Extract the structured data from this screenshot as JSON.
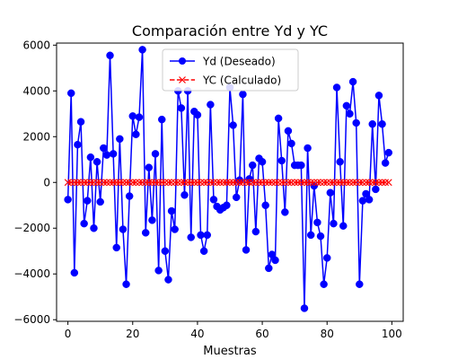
{
  "chart_data": {
    "type": "line",
    "title": "Comparación entre Yd y YC",
    "xlabel": "Muestras",
    "ylabel": "",
    "xlim": [
      -3.5,
      103.5
    ],
    "ylim": [
      -6070,
      6090
    ],
    "xticks": [
      0,
      20,
      40,
      60,
      80,
      100
    ],
    "yticks": [
      -6000,
      -4000,
      -2000,
      0,
      2000,
      4000,
      6000
    ],
    "ytick_labels": [
      "−6000",
      "−4000",
      "−2000",
      "0",
      "2000",
      "4000",
      "6000"
    ],
    "grid": false,
    "legend_position": "top-center",
    "x": [
      0,
      1,
      2,
      3,
      4,
      5,
      6,
      7,
      8,
      9,
      10,
      11,
      12,
      13,
      14,
      15,
      16,
      17,
      18,
      19,
      20,
      21,
      22,
      23,
      24,
      25,
      26,
      27,
      28,
      29,
      30,
      31,
      32,
      33,
      34,
      35,
      36,
      37,
      38,
      39,
      40,
      41,
      42,
      43,
      44,
      45,
      46,
      47,
      48,
      49,
      50,
      51,
      52,
      53,
      54,
      55,
      56,
      57,
      58,
      59,
      60,
      61,
      62,
      63,
      64,
      65,
      66,
      67,
      68,
      69,
      70,
      71,
      72,
      73,
      74,
      75,
      76,
      77,
      78,
      79,
      80,
      81,
      82,
      83,
      84,
      85,
      86,
      87,
      88,
      89,
      90,
      91,
      92,
      93,
      94,
      95,
      96,
      97,
      98,
      99
    ],
    "series": [
      {
        "name": "Yd (Deseado)",
        "color": "#0000ff",
        "marker": "circle",
        "linestyle": "solid",
        "values": [
          -750,
          3900,
          -3950,
          1650,
          2650,
          -1800,
          -800,
          1100,
          -2000,
          900,
          -850,
          1500,
          1200,
          5550,
          1250,
          -2850,
          1900,
          -2050,
          -4450,
          -600,
          2900,
          2100,
          2850,
          5800,
          -2200,
          650,
          -1650,
          1250,
          -3850,
          2750,
          -3000,
          -4250,
          -1250,
          -2050,
          4000,
          3250,
          -550,
          4000,
          -2400,
          3100,
          2950,
          -2300,
          -3000,
          -2300,
          3400,
          -750,
          -1050,
          -1200,
          -1100,
          -1000,
          4150,
          2500,
          -650,
          100,
          3850,
          -2950,
          150,
          750,
          -2150,
          1050,
          900,
          -1000,
          -3750,
          -3150,
          -3400,
          2800,
          950,
          -1300,
          2250,
          1700,
          750,
          750,
          750,
          -5500,
          1500,
          -2300,
          -150,
          -1750,
          -2350,
          -4450,
          -3300,
          -450,
          -1800,
          4150,
          900,
          -1900,
          3350,
          3000,
          4400,
          2600,
          -4450,
          -800,
          -500,
          -750,
          2550,
          -300,
          3800,
          2550,
          850,
          1300
        ]
      },
      {
        "name": "YC (Calculado)",
        "color": "#ff0000",
        "marker": "x",
        "linestyle": "dashed",
        "values": [
          0,
          0,
          0,
          0,
          0,
          0,
          0,
          0,
          0,
          0,
          0,
          0,
          0,
          0,
          0,
          0,
          0,
          0,
          0,
          0,
          0,
          0,
          0,
          0,
          0,
          0,
          0,
          0,
          0,
          0,
          0,
          0,
          0,
          0,
          0,
          0,
          0,
          0,
          0,
          0,
          0,
          0,
          0,
          0,
          0,
          0,
          0,
          0,
          0,
          0,
          0,
          0,
          0,
          0,
          0,
          0,
          0,
          0,
          0,
          0,
          0,
          0,
          0,
          0,
          0,
          0,
          0,
          0,
          0,
          0,
          0,
          0,
          0,
          0,
          0,
          0,
          0,
          0,
          0,
          0,
          0,
          0,
          0,
          0,
          0,
          0,
          0,
          0,
          0,
          0,
          0,
          0,
          0,
          0,
          0,
          0,
          0,
          0,
          0,
          0
        ]
      }
    ]
  }
}
